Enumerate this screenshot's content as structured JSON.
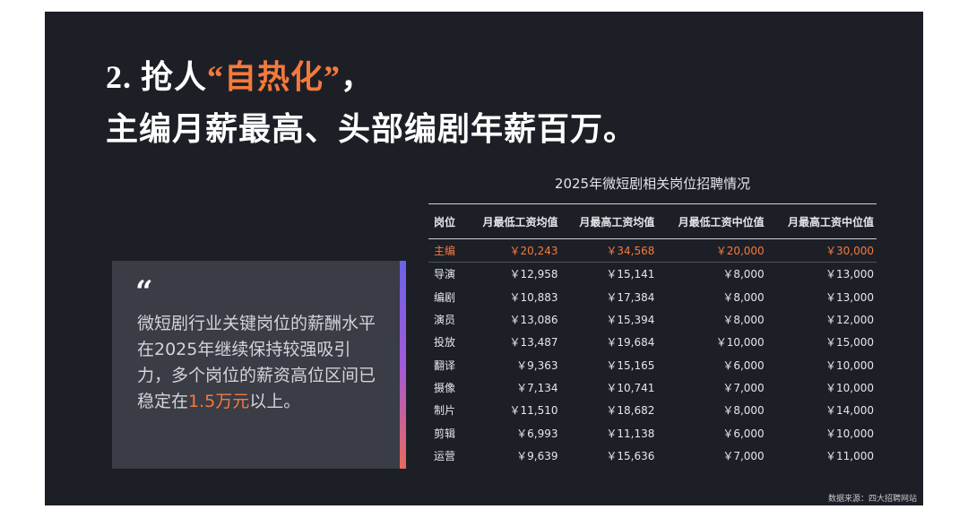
{
  "headline": {
    "line1_prefix": "2. 抢人",
    "line1_accent": "“自热化”",
    "line1_suffix": "，",
    "line2": "主编月薪最高、头部编剧年薪百万。"
  },
  "quote": {
    "mark": "“",
    "text_before": "微短剧行业关键岗位的薪酬水平在2025年继续保持较强吸引力，多个岗位的薪资高位区间已稳定在",
    "text_highlight": "1.5万元",
    "text_after": "以上。",
    "accent_color": "#f47a3b",
    "bar_colors": [
      "#6b63e6",
      "#a35ad8",
      "#e96a5a"
    ]
  },
  "table": {
    "title": "2025年微短剧相关岗位招聘情况",
    "headers": [
      "岗位",
      "月最低工资均值",
      "月最高工资均值",
      "月最低工资中位值",
      "月最高工资中位值"
    ],
    "rows": [
      [
        "主编",
        "￥20,243",
        "￥34,568",
        "￥20,000",
        "￥30,000"
      ],
      [
        "导演",
        "￥12,958",
        "￥15,141",
        "￥8,000",
        "￥13,000"
      ],
      [
        "编剧",
        "￥10,883",
        "￥17,384",
        "￥8,000",
        "￥13,000"
      ],
      [
        "演员",
        "￥13,086",
        "￥15,394",
        "￥8,000",
        "￥12,000"
      ],
      [
        "投放",
        "￥13,487",
        "￥19,684",
        "￥10,000",
        "￥15,000"
      ],
      [
        "翻译",
        "￥9,363",
        "￥15,165",
        "￥6,000",
        "￥10,000"
      ],
      [
        "摄像",
        "￥7,134",
        "￥10,741",
        "￥7,000",
        "￥10,000"
      ],
      [
        "制片",
        "￥11,510",
        "￥18,682",
        "￥8,000",
        "￥14,000"
      ],
      [
        "剪辑",
        "￥6,993",
        "￥11,138",
        "￥6,000",
        "￥10,000"
      ],
      [
        "运营",
        "￥9,639",
        "￥15,636",
        "￥7,000",
        "￥11,000"
      ]
    ],
    "highlight_color": "#f47a3b"
  },
  "source": "数据来源：四大招聘网站",
  "colors": {
    "slide_background": "#1d1f27",
    "card_background": "#3a3c46",
    "accent": "#f47a3b"
  }
}
